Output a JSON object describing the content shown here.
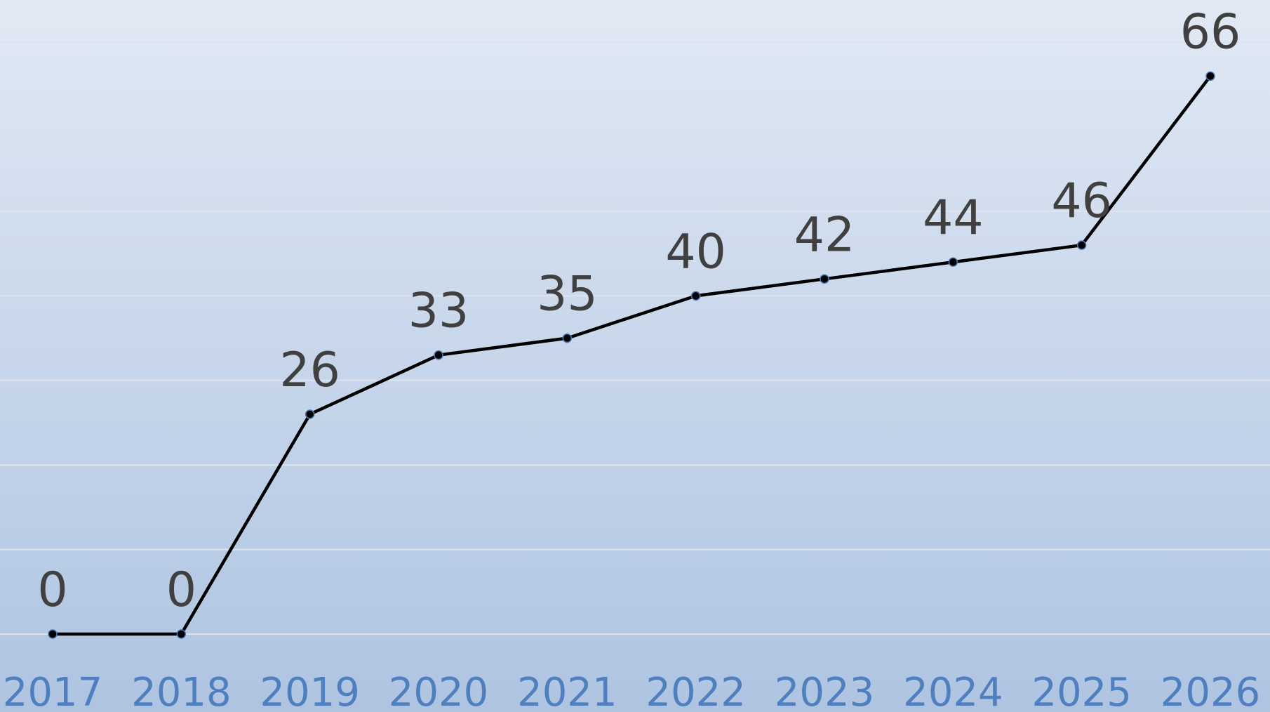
{
  "chart_data": {
    "type": "line",
    "categories": [
      "2017",
      "2018",
      "2019",
      "2020",
      "2021",
      "2022",
      "2023",
      "2024",
      "2025",
      "2026"
    ],
    "values": [
      0,
      0,
      26,
      33,
      35,
      40,
      42,
      44,
      46,
      66
    ],
    "color": "#000000",
    "ylim": [
      0,
      75
    ],
    "yticks": [
      0,
      10,
      20,
      30,
      40,
      50,
      60,
      70
    ],
    "grid": true
  }
}
